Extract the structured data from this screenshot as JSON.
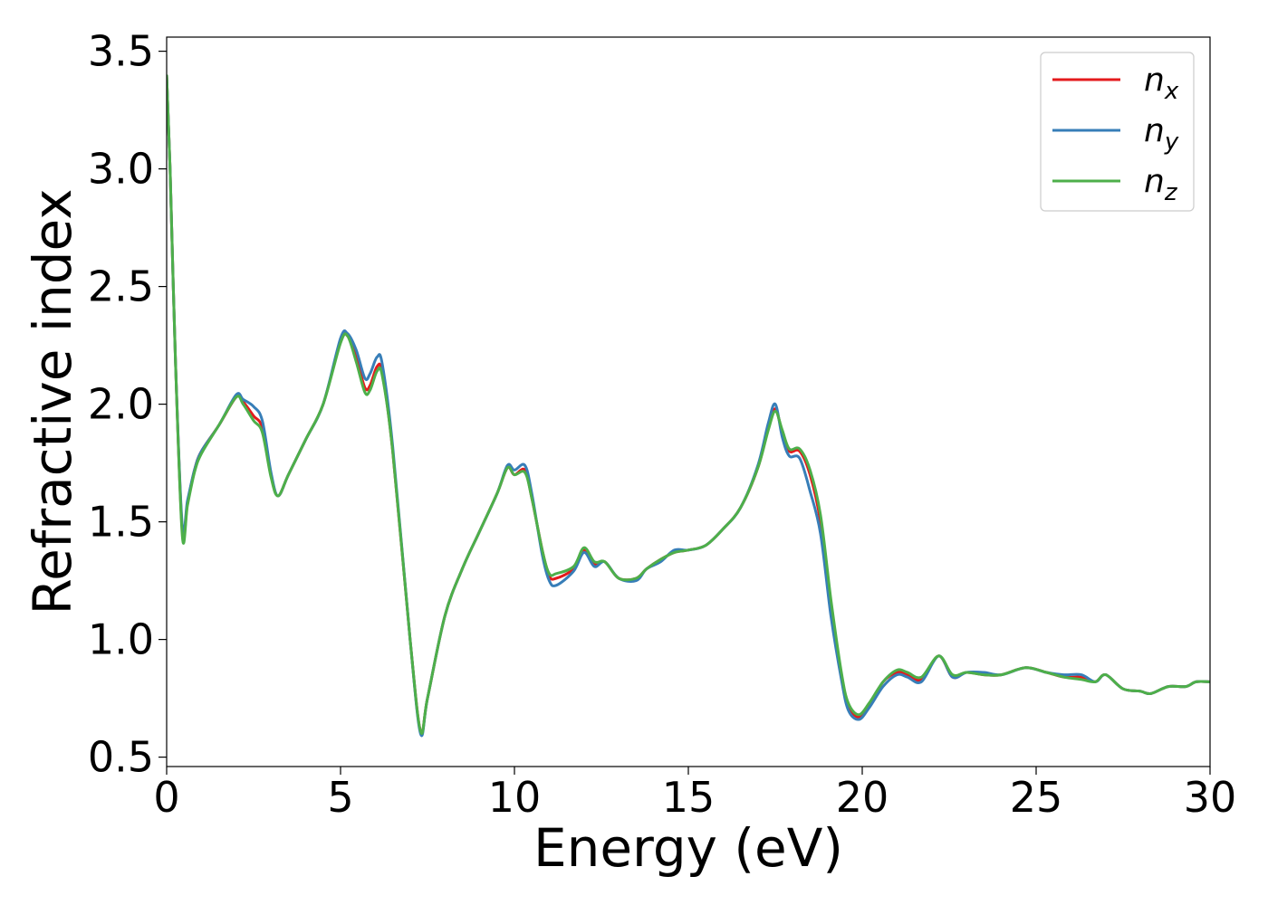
{
  "chart_data": {
    "type": "line",
    "title": "",
    "xlabel": "Energy (eV)",
    "ylabel": "Refractive index",
    "xlim": [
      0,
      30
    ],
    "ylim": [
      0.46,
      3.56
    ],
    "xticks": [
      0,
      5,
      10,
      15,
      20,
      25,
      30
    ],
    "xtick_labels": [
      "0",
      "5",
      "10",
      "15",
      "20",
      "25",
      "30"
    ],
    "yticks": [
      0.5,
      1.0,
      1.5,
      2.0,
      2.5,
      3.0,
      3.5
    ],
    "ytick_labels": [
      "0.5",
      "1.0",
      "1.5",
      "2.0",
      "2.5",
      "3.0",
      "3.5"
    ],
    "grid": false,
    "legend_position": "top-right",
    "series": [
      {
        "name": "n",
        "subscript": "x",
        "color": "#e41a1c",
        "points": [
          [
            0,
            3.4
          ],
          [
            0.1,
            3.0
          ],
          [
            0.25,
            2.2
          ],
          [
            0.45,
            1.46
          ],
          [
            0.6,
            1.58
          ],
          [
            0.8,
            1.72
          ],
          [
            1.0,
            1.8
          ],
          [
            1.5,
            1.91
          ],
          [
            2.0,
            2.03
          ],
          [
            2.2,
            2.01
          ],
          [
            2.5,
            1.95
          ],
          [
            2.75,
            1.9
          ],
          [
            3.0,
            1.7
          ],
          [
            3.2,
            1.61
          ],
          [
            3.5,
            1.7
          ],
          [
            4.0,
            1.85
          ],
          [
            4.5,
            2.0
          ],
          [
            5.0,
            2.27
          ],
          [
            5.2,
            2.29
          ],
          [
            5.45,
            2.2
          ],
          [
            5.7,
            2.07
          ],
          [
            5.85,
            2.08
          ],
          [
            6.05,
            2.16
          ],
          [
            6.2,
            2.13
          ],
          [
            6.5,
            1.8
          ],
          [
            7.0,
            1.0
          ],
          [
            7.3,
            0.61
          ],
          [
            7.5,
            0.75
          ],
          [
            8.0,
            1.1
          ],
          [
            8.5,
            1.3
          ],
          [
            9.0,
            1.46
          ],
          [
            9.5,
            1.62
          ],
          [
            9.8,
            1.73
          ],
          [
            10.0,
            1.7
          ],
          [
            10.3,
            1.72
          ],
          [
            10.5,
            1.6
          ],
          [
            10.8,
            1.38
          ],
          [
            11.0,
            1.27
          ],
          [
            11.2,
            1.26
          ],
          [
            11.7,
            1.3
          ],
          [
            12.0,
            1.38
          ],
          [
            12.3,
            1.32
          ],
          [
            12.6,
            1.33
          ],
          [
            13.0,
            1.26
          ],
          [
            13.5,
            1.26
          ],
          [
            13.8,
            1.3
          ],
          [
            14.2,
            1.34
          ],
          [
            14.6,
            1.37
          ],
          [
            15.0,
            1.38
          ],
          [
            15.5,
            1.4
          ],
          [
            16.0,
            1.47
          ],
          [
            16.5,
            1.56
          ],
          [
            17.0,
            1.73
          ],
          [
            17.3,
            1.9
          ],
          [
            17.5,
            1.98
          ],
          [
            17.7,
            1.88
          ],
          [
            17.9,
            1.8
          ],
          [
            18.2,
            1.8
          ],
          [
            18.5,
            1.7
          ],
          [
            18.8,
            1.5
          ],
          [
            19.1,
            1.15
          ],
          [
            19.4,
            0.85
          ],
          [
            19.6,
            0.72
          ],
          [
            19.9,
            0.67
          ],
          [
            20.2,
            0.72
          ],
          [
            20.6,
            0.82
          ],
          [
            21.0,
            0.86
          ],
          [
            21.3,
            0.85
          ],
          [
            21.7,
            0.83
          ],
          [
            22.2,
            0.93
          ],
          [
            22.6,
            0.84
          ],
          [
            23.0,
            0.86
          ],
          [
            23.5,
            0.85
          ],
          [
            24.0,
            0.85
          ],
          [
            24.7,
            0.88
          ],
          [
            25.3,
            0.86
          ],
          [
            25.8,
            0.84
          ],
          [
            26.3,
            0.84
          ],
          [
            26.7,
            0.82
          ],
          [
            27.0,
            0.85
          ],
          [
            27.5,
            0.79
          ],
          [
            28.0,
            0.78
          ],
          [
            28.3,
            0.77
          ],
          [
            28.8,
            0.8
          ],
          [
            29.3,
            0.8
          ],
          [
            29.6,
            0.82
          ],
          [
            30.0,
            0.82
          ]
        ]
      },
      {
        "name": "n",
        "subscript": "y",
        "color": "#377eb8",
        "points": [
          [
            0,
            3.4
          ],
          [
            0.1,
            3.0
          ],
          [
            0.25,
            2.2
          ],
          [
            0.45,
            1.48
          ],
          [
            0.6,
            1.59
          ],
          [
            0.8,
            1.72
          ],
          [
            1.0,
            1.8
          ],
          [
            1.5,
            1.91
          ],
          [
            2.0,
            2.04
          ],
          [
            2.2,
            2.02
          ],
          [
            2.5,
            1.99
          ],
          [
            2.75,
            1.93
          ],
          [
            3.0,
            1.71
          ],
          [
            3.2,
            1.61
          ],
          [
            3.5,
            1.7
          ],
          [
            4.0,
            1.85
          ],
          [
            4.5,
            2.0
          ],
          [
            5.0,
            2.28
          ],
          [
            5.2,
            2.3
          ],
          [
            5.45,
            2.23
          ],
          [
            5.7,
            2.11
          ],
          [
            5.85,
            2.13
          ],
          [
            6.05,
            2.2
          ],
          [
            6.2,
            2.17
          ],
          [
            6.5,
            1.82
          ],
          [
            7.0,
            1.0
          ],
          [
            7.3,
            0.6
          ],
          [
            7.5,
            0.75
          ],
          [
            8.0,
            1.1
          ],
          [
            8.5,
            1.3
          ],
          [
            9.0,
            1.46
          ],
          [
            9.5,
            1.62
          ],
          [
            9.8,
            1.74
          ],
          [
            10.0,
            1.72
          ],
          [
            10.3,
            1.74
          ],
          [
            10.5,
            1.62
          ],
          [
            10.8,
            1.36
          ],
          [
            11.0,
            1.25
          ],
          [
            11.2,
            1.23
          ],
          [
            11.7,
            1.29
          ],
          [
            12.0,
            1.37
          ],
          [
            12.3,
            1.31
          ],
          [
            12.6,
            1.33
          ],
          [
            13.0,
            1.26
          ],
          [
            13.5,
            1.25
          ],
          [
            13.8,
            1.3
          ],
          [
            14.2,
            1.33
          ],
          [
            14.6,
            1.38
          ],
          [
            15.0,
            1.38
          ],
          [
            15.5,
            1.4
          ],
          [
            16.0,
            1.47
          ],
          [
            16.5,
            1.56
          ],
          [
            17.0,
            1.74
          ],
          [
            17.3,
            1.92
          ],
          [
            17.5,
            2.0
          ],
          [
            17.7,
            1.86
          ],
          [
            17.9,
            1.78
          ],
          [
            18.2,
            1.77
          ],
          [
            18.5,
            1.63
          ],
          [
            18.8,
            1.45
          ],
          [
            19.1,
            1.1
          ],
          [
            19.4,
            0.83
          ],
          [
            19.6,
            0.7
          ],
          [
            19.9,
            0.66
          ],
          [
            20.2,
            0.71
          ],
          [
            20.6,
            0.8
          ],
          [
            21.0,
            0.85
          ],
          [
            21.3,
            0.84
          ],
          [
            21.7,
            0.82
          ],
          [
            22.2,
            0.93
          ],
          [
            22.6,
            0.84
          ],
          [
            23.0,
            0.86
          ],
          [
            23.5,
            0.86
          ],
          [
            24.0,
            0.85
          ],
          [
            24.7,
            0.88
          ],
          [
            25.3,
            0.86
          ],
          [
            25.8,
            0.85
          ],
          [
            26.3,
            0.85
          ],
          [
            26.7,
            0.82
          ],
          [
            27.0,
            0.85
          ],
          [
            27.5,
            0.79
          ],
          [
            28.0,
            0.78
          ],
          [
            28.3,
            0.77
          ],
          [
            28.8,
            0.8
          ],
          [
            29.3,
            0.8
          ],
          [
            29.6,
            0.82
          ],
          [
            30.0,
            0.82
          ]
        ]
      },
      {
        "name": "n",
        "subscript": "z",
        "color": "#4daf4a",
        "points": [
          [
            0,
            3.4
          ],
          [
            0.1,
            3.0
          ],
          [
            0.25,
            2.2
          ],
          [
            0.45,
            1.44
          ],
          [
            0.6,
            1.57
          ],
          [
            0.8,
            1.71
          ],
          [
            1.0,
            1.79
          ],
          [
            1.5,
            1.91
          ],
          [
            2.0,
            2.03
          ],
          [
            2.2,
            2.0
          ],
          [
            2.5,
            1.93
          ],
          [
            2.75,
            1.88
          ],
          [
            3.0,
            1.69
          ],
          [
            3.2,
            1.61
          ],
          [
            3.5,
            1.7
          ],
          [
            4.0,
            1.85
          ],
          [
            4.5,
            2.0
          ],
          [
            5.0,
            2.26
          ],
          [
            5.2,
            2.29
          ],
          [
            5.45,
            2.18
          ],
          [
            5.7,
            2.05
          ],
          [
            5.85,
            2.06
          ],
          [
            6.05,
            2.14
          ],
          [
            6.2,
            2.12
          ],
          [
            6.5,
            1.8
          ],
          [
            7.0,
            1.0
          ],
          [
            7.3,
            0.61
          ],
          [
            7.5,
            0.75
          ],
          [
            8.0,
            1.1
          ],
          [
            8.5,
            1.3
          ],
          [
            9.0,
            1.46
          ],
          [
            9.5,
            1.62
          ],
          [
            9.8,
            1.73
          ],
          [
            10.0,
            1.7
          ],
          [
            10.3,
            1.71
          ],
          [
            10.5,
            1.6
          ],
          [
            10.8,
            1.38
          ],
          [
            11.0,
            1.28
          ],
          [
            11.2,
            1.28
          ],
          [
            11.7,
            1.31
          ],
          [
            12.0,
            1.39
          ],
          [
            12.3,
            1.33
          ],
          [
            12.6,
            1.33
          ],
          [
            13.0,
            1.26
          ],
          [
            13.5,
            1.26
          ],
          [
            13.8,
            1.3
          ],
          [
            14.2,
            1.34
          ],
          [
            14.6,
            1.37
          ],
          [
            15.0,
            1.38
          ],
          [
            15.5,
            1.4
          ],
          [
            16.0,
            1.47
          ],
          [
            16.5,
            1.56
          ],
          [
            17.0,
            1.73
          ],
          [
            17.3,
            1.89
          ],
          [
            17.5,
            1.97
          ],
          [
            17.7,
            1.89
          ],
          [
            17.9,
            1.81
          ],
          [
            18.2,
            1.81
          ],
          [
            18.5,
            1.72
          ],
          [
            18.8,
            1.53
          ],
          [
            19.1,
            1.17
          ],
          [
            19.4,
            0.86
          ],
          [
            19.6,
            0.73
          ],
          [
            19.9,
            0.68
          ],
          [
            20.2,
            0.73
          ],
          [
            20.6,
            0.82
          ],
          [
            21.0,
            0.87
          ],
          [
            21.3,
            0.86
          ],
          [
            21.7,
            0.84
          ],
          [
            22.2,
            0.93
          ],
          [
            22.6,
            0.85
          ],
          [
            23.0,
            0.86
          ],
          [
            23.5,
            0.85
          ],
          [
            24.0,
            0.85
          ],
          [
            24.7,
            0.88
          ],
          [
            25.3,
            0.86
          ],
          [
            25.8,
            0.84
          ],
          [
            26.3,
            0.83
          ],
          [
            26.7,
            0.82
          ],
          [
            27.0,
            0.85
          ],
          [
            27.5,
            0.79
          ],
          [
            28.0,
            0.78
          ],
          [
            28.3,
            0.77
          ],
          [
            28.8,
            0.8
          ],
          [
            29.3,
            0.8
          ],
          [
            29.6,
            0.82
          ],
          [
            30.0,
            0.82
          ]
        ]
      }
    ]
  }
}
